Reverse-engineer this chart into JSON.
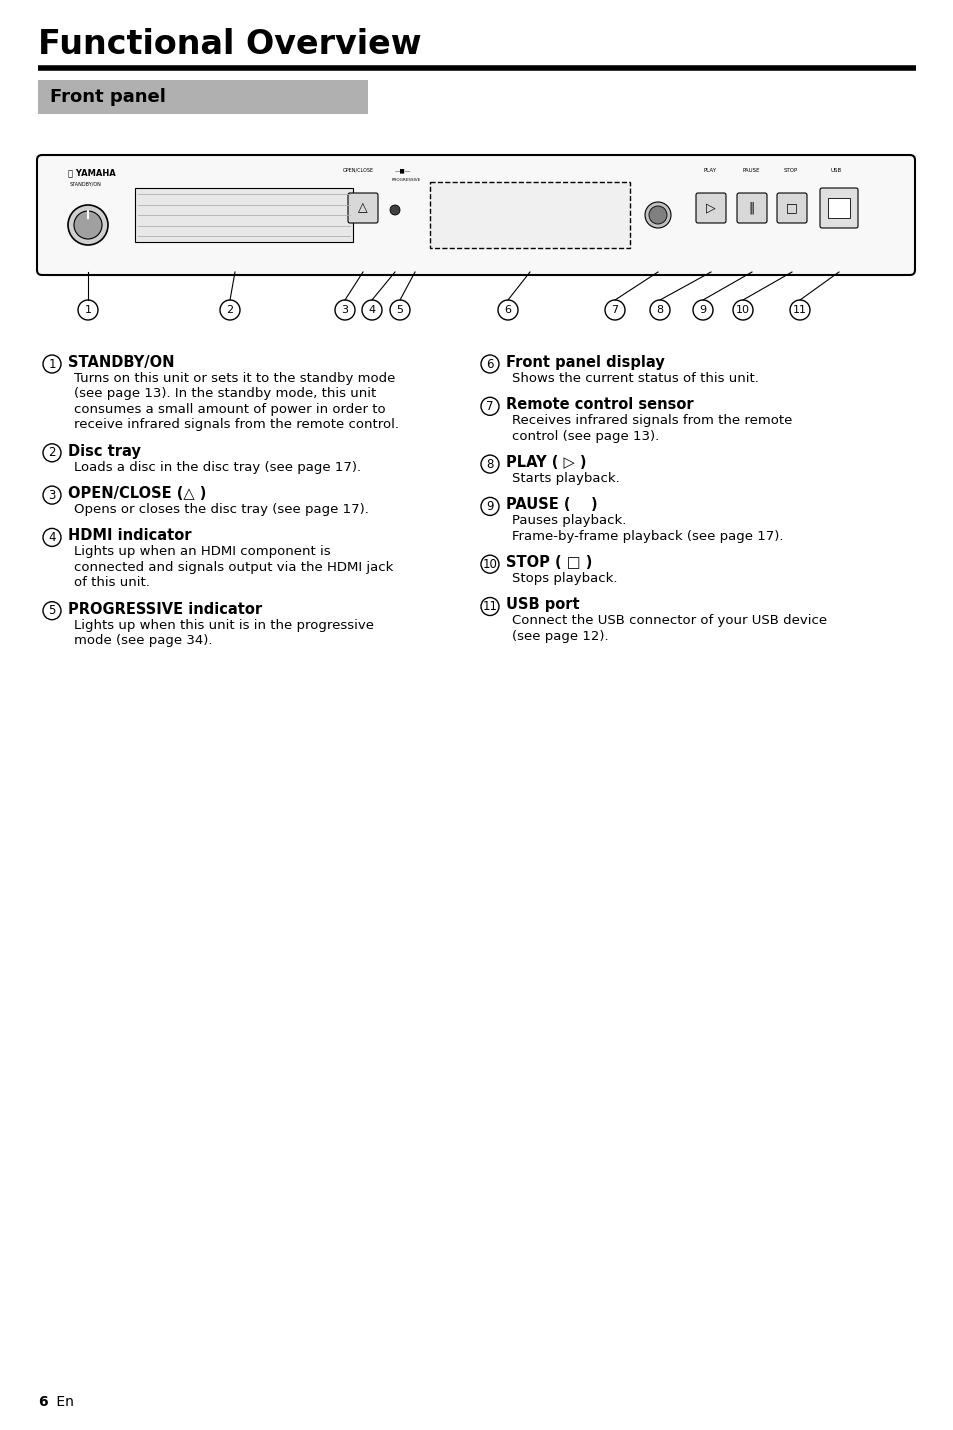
{
  "title": "Functional Overview",
  "section": "Front panel",
  "page_number": "6",
  "page_suffix": " En",
  "bg_color": "#ffffff",
  "section_bg": "#b0b0b0",
  "items_left": [
    {
      "num": "1",
      "heading": "STANDBY/ON",
      "body": "Turns on this unit or sets it to the standby mode\n(see page 13). In the standby mode, this unit\nconsumes a small amount of power in order to\nreceive infrared signals from the remote control."
    },
    {
      "num": "2",
      "heading": "Disc tray",
      "body": "Loads a disc in the disc tray (see page 17)."
    },
    {
      "num": "3",
      "heading": "OPEN/CLOSE (△ )",
      "body": "Opens or closes the disc tray (see page 17)."
    },
    {
      "num": "4",
      "heading": "HDMI indicator",
      "body": "Lights up when an HDMI component is\nconnected and signals output via the HDMI jack\nof this unit."
    },
    {
      "num": "5",
      "heading": "PROGRESSIVE indicator",
      "body": "Lights up when this unit is in the progressive\nmode (see page 34)."
    }
  ],
  "items_right": [
    {
      "num": "6",
      "heading": "Front panel display",
      "body": "Shows the current status of this unit."
    },
    {
      "num": "7",
      "heading": "Remote control sensor",
      "body": "Receives infrared signals from the remote\ncontrol (see page 13)."
    },
    {
      "num": "8",
      "heading": "PLAY ( ▷ )",
      "body": "Starts playback."
    },
    {
      "num": "9",
      "heading": "PAUSE (    )",
      "body": "Pauses playback.\nFrame-by-frame playback (see page 17)."
    },
    {
      "num": "10",
      "heading": "STOP ( □ )",
      "body": "Stops playback."
    },
    {
      "num": "11",
      "heading": "USB port",
      "body": "Connect the USB connector of your USB device\n(see page 12)."
    }
  ]
}
